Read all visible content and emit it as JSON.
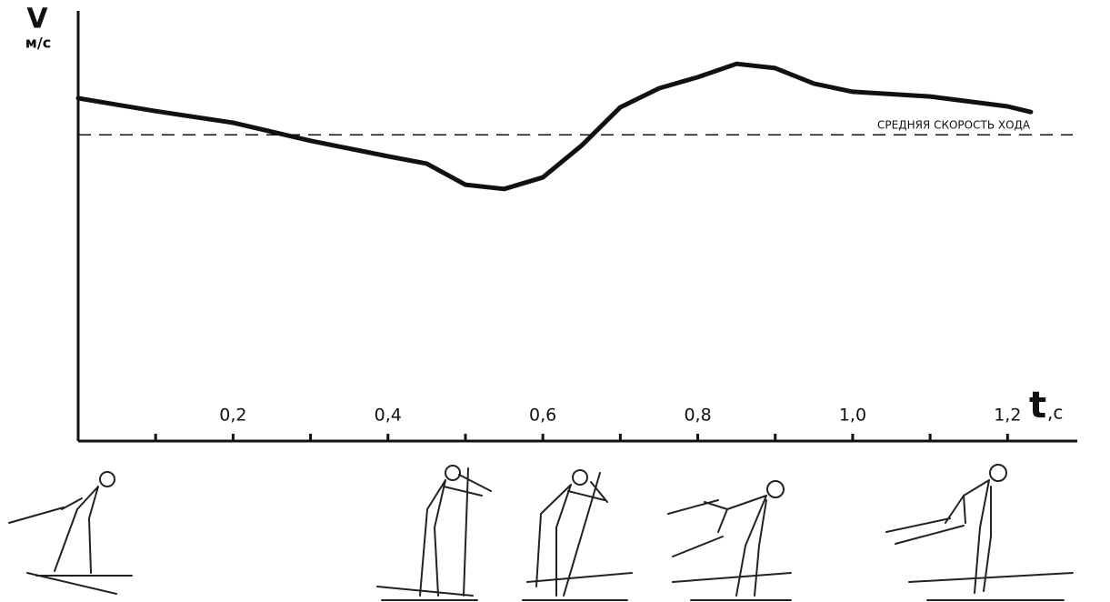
{
  "chart_data": {
    "type": "line",
    "y_label": "V",
    "y_unit": "м/с",
    "x_label": "t",
    "x_unit": ",c",
    "reference_label": "СРЕДНЯЯ СКОРОСТЬ ХОДА",
    "reference_value": 7.12,
    "x": [
      0,
      0.1,
      0.2,
      0.3,
      0.4,
      0.45,
      0.5,
      0.55,
      0.6,
      0.65,
      0.7,
      0.75,
      0.8,
      0.85,
      0.9,
      0.95,
      1.0,
      1.1,
      1.2,
      1.23
    ],
    "series": [
      {
        "color": "#111111",
        "values": [
          7.97,
          7.67,
          7.4,
          6.98,
          6.62,
          6.45,
          5.96,
          5.86,
          6.13,
          6.87,
          7.76,
          8.2,
          8.46,
          8.77,
          8.67,
          8.31,
          8.12,
          8.01,
          7.78,
          7.65
        ]
      }
    ],
    "xlim": [
      0,
      1.29
    ],
    "ylim": [
      0,
      10
    ],
    "xticks": [
      {
        "value": 0.2,
        "label": "0,2"
      },
      {
        "value": 0.4,
        "label": "0,4"
      },
      {
        "value": 0.6,
        "label": "0,6"
      },
      {
        "value": 0.8,
        "label": "0,8"
      },
      {
        "value": 1.0,
        "label": "1,0"
      },
      {
        "value": 1.2,
        "label": "1,2"
      }
    ],
    "xminorticks": [
      0.1,
      0.3,
      0.5,
      0.7,
      0.9,
      1.1
    ]
  }
}
